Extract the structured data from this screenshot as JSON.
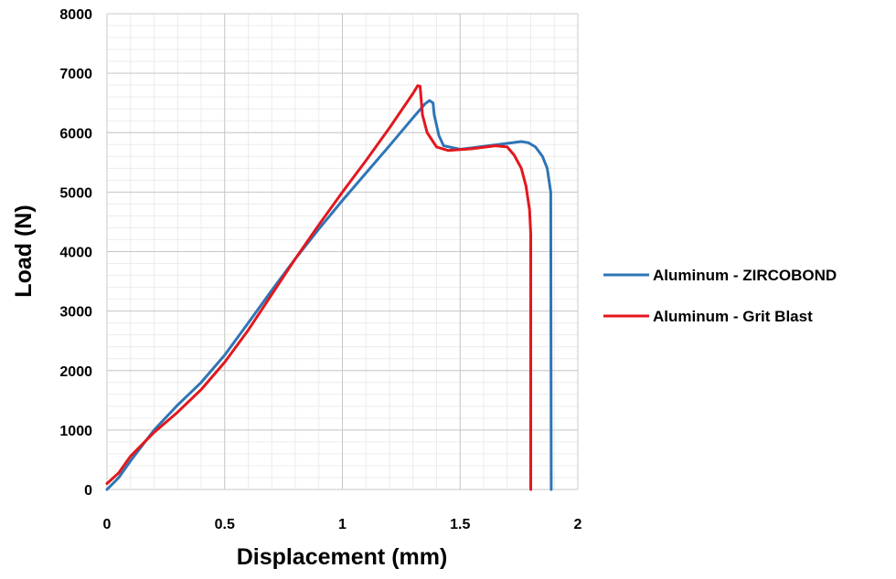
{
  "chart_data": {
    "type": "line",
    "title": "",
    "xlabel": "Displacement (mm)",
    "ylabel": "Load (N)",
    "xlim": [
      0,
      2
    ],
    "ylim": [
      0,
      8000
    ],
    "x_ticks": [
      0,
      0.5,
      1,
      1.5,
      2
    ],
    "x_tick_labels": [
      "0",
      "0.5",
      "1",
      "1.5",
      "2"
    ],
    "y_ticks": [
      0,
      1000,
      2000,
      3000,
      4000,
      5000,
      6000,
      7000,
      8000
    ],
    "y_tick_labels": [
      "0",
      "1000",
      "2000",
      "3000",
      "4000",
      "5000",
      "6000",
      "7000",
      "8000"
    ],
    "grid": "major and minor",
    "legend_position": "right",
    "series": [
      {
        "name": "Aluminum - ZIRCOBOND",
        "color": "#2E75B6",
        "points": [
          [
            0,
            0
          ],
          [
            0.05,
            200
          ],
          [
            0.1,
            480
          ],
          [
            0.2,
            1000
          ],
          [
            0.3,
            1420
          ],
          [
            0.4,
            1800
          ],
          [
            0.5,
            2260
          ],
          [
            0.6,
            2800
          ],
          [
            0.7,
            3350
          ],
          [
            0.8,
            3880
          ],
          [
            0.9,
            4380
          ],
          [
            1.0,
            4860
          ],
          [
            1.1,
            5320
          ],
          [
            1.2,
            5780
          ],
          [
            1.3,
            6250
          ],
          [
            1.35,
            6480
          ],
          [
            1.37,
            6540
          ],
          [
            1.385,
            6500
          ],
          [
            1.39,
            6300
          ],
          [
            1.41,
            5950
          ],
          [
            1.43,
            5780
          ],
          [
            1.5,
            5720
          ],
          [
            1.6,
            5770
          ],
          [
            1.7,
            5820
          ],
          [
            1.76,
            5850
          ],
          [
            1.79,
            5830
          ],
          [
            1.82,
            5760
          ],
          [
            1.85,
            5600
          ],
          [
            1.87,
            5400
          ],
          [
            1.885,
            5000
          ],
          [
            1.887,
            0
          ]
        ]
      },
      {
        "name": "Aluminum - Grit Blast",
        "color": "#E3171E",
        "points": [
          [
            0,
            100
          ],
          [
            0.05,
            280
          ],
          [
            0.1,
            560
          ],
          [
            0.2,
            960
          ],
          [
            0.3,
            1300
          ],
          [
            0.4,
            1680
          ],
          [
            0.5,
            2140
          ],
          [
            0.6,
            2680
          ],
          [
            0.7,
            3280
          ],
          [
            0.8,
            3880
          ],
          [
            0.9,
            4450
          ],
          [
            1.0,
            5000
          ],
          [
            1.1,
            5530
          ],
          [
            1.2,
            6080
          ],
          [
            1.3,
            6660
          ],
          [
            1.32,
            6790
          ],
          [
            1.33,
            6780
          ],
          [
            1.34,
            6300
          ],
          [
            1.36,
            6000
          ],
          [
            1.4,
            5760
          ],
          [
            1.45,
            5700
          ],
          [
            1.55,
            5730
          ],
          [
            1.65,
            5780
          ],
          [
            1.7,
            5760
          ],
          [
            1.73,
            5620
          ],
          [
            1.76,
            5400
          ],
          [
            1.78,
            5100
          ],
          [
            1.795,
            4700
          ],
          [
            1.8,
            4300
          ],
          [
            1.8,
            0
          ]
        ]
      }
    ]
  }
}
